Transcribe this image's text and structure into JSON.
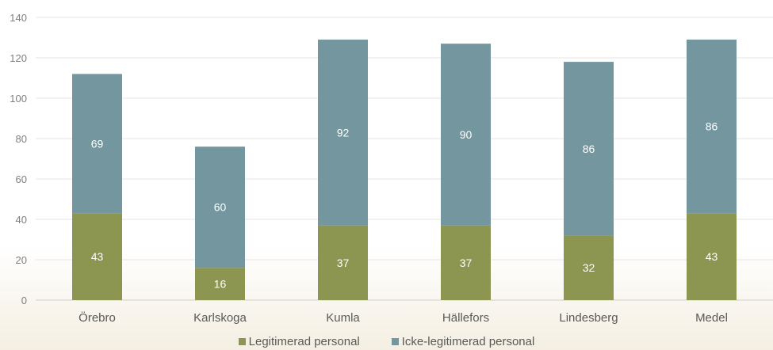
{
  "chart_data": {
    "type": "bar",
    "stacked": true,
    "categories": [
      "Örebro",
      "Karlskoga",
      "Kumla",
      "Hällefors",
      "Lindesberg",
      "Medel"
    ],
    "series": [
      {
        "name": "Legitimerad personal",
        "values": [
          43,
          16,
          37,
          37,
          32,
          43
        ],
        "color": "#8c9650"
      },
      {
        "name": "Icke-legitimerad personal",
        "values": [
          69,
          60,
          92,
          90,
          86,
          86
        ],
        "color": "#73969f"
      }
    ],
    "ylim": [
      0,
      140
    ],
    "yticks": [
      0,
      20,
      40,
      60,
      80,
      100,
      120,
      140
    ],
    "grid": true,
    "legend_position": "bottom",
    "background_color": "#f7f4ec"
  }
}
